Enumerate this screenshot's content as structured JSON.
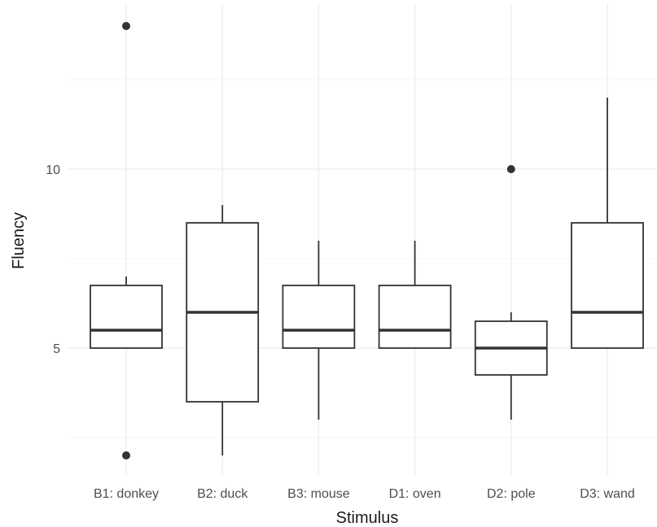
{
  "chart_data": {
    "type": "boxplot",
    "xlabel": "Stimulus",
    "ylabel": "Fluency",
    "categories": [
      "B1: donkey",
      "B2: duck",
      "B3: mouse",
      "D1: oven",
      "D2: pole",
      "D3: wand"
    ],
    "yticks": [
      5,
      10
    ],
    "ylim": [
      1.5,
      14.5
    ],
    "grid": true,
    "boxes": [
      {
        "category": "B1: donkey",
        "whisker_low": 5,
        "q1": 5,
        "median": 5.5,
        "q3": 6.75,
        "whisker_high": 7,
        "outliers": [
          2,
          14
        ]
      },
      {
        "category": "B2: duck",
        "whisker_low": 2,
        "q1": 3.5,
        "median": 6,
        "q3": 8.5,
        "whisker_high": 9,
        "outliers": []
      },
      {
        "category": "B3: mouse",
        "whisker_low": 3,
        "q1": 5,
        "median": 5.5,
        "q3": 6.75,
        "whisker_high": 8,
        "outliers": []
      },
      {
        "category": "D1: oven",
        "whisker_low": 5,
        "q1": 5,
        "median": 5.5,
        "q3": 6.75,
        "whisker_high": 8,
        "outliers": []
      },
      {
        "category": "D2: pole",
        "whisker_low": 3,
        "q1": 4.25,
        "median": 5,
        "q3": 5.75,
        "whisker_high": 6,
        "outliers": [
          10
        ]
      },
      {
        "category": "D3: wand",
        "whisker_low": 5,
        "q1": 5,
        "median": 6,
        "q3": 8.5,
        "whisker_high": 12,
        "outliers": []
      }
    ]
  }
}
